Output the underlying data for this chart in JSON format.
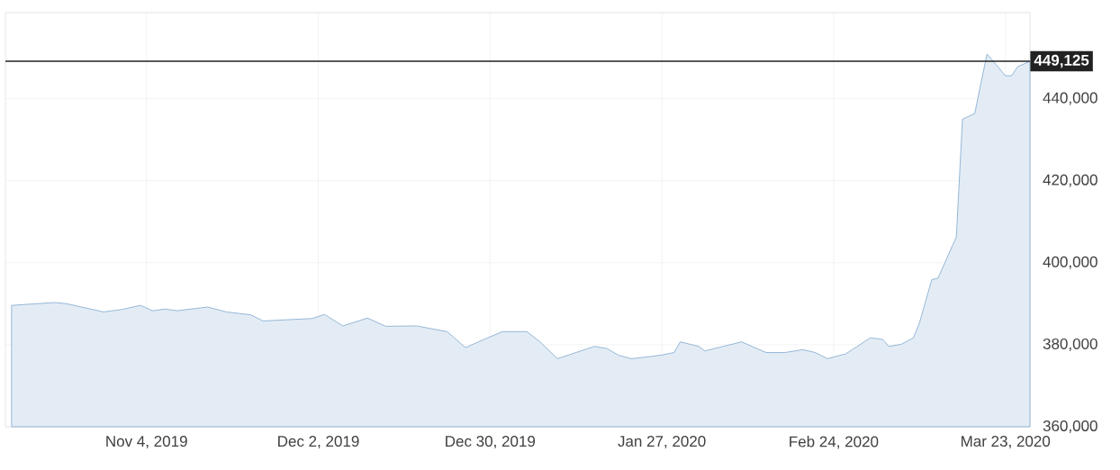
{
  "chart_data": {
    "type": "area",
    "x": [
      "2019-10-13",
      "2019-10-20",
      "2019-10-22",
      "2019-10-28",
      "2019-10-31",
      "2019-11-03",
      "2019-11-05",
      "2019-11-07",
      "2019-11-09",
      "2019-11-14",
      "2019-11-17",
      "2019-11-21",
      "2019-11-23",
      "2019-11-27",
      "2019-12-01",
      "2019-12-03",
      "2019-12-06",
      "2019-12-10",
      "2019-12-13",
      "2019-12-18",
      "2019-12-23",
      "2019-12-26",
      "2019-12-29",
      "2020-01-01",
      "2020-01-05",
      "2020-01-07",
      "2020-01-10",
      "2020-01-13",
      "2020-01-16",
      "2020-01-18",
      "2020-01-20",
      "2020-01-22",
      "2020-01-25",
      "2020-01-27",
      "2020-01-29",
      "2020-01-30",
      "2020-02-02",
      "2020-02-03",
      "2020-02-06",
      "2020-02-09",
      "2020-02-13",
      "2020-02-16",
      "2020-02-19",
      "2020-02-21",
      "2020-02-23",
      "2020-02-26",
      "2020-03-01",
      "2020-03-03",
      "2020-03-04",
      "2020-03-06",
      "2020-03-08",
      "2020-03-09",
      "2020-03-11",
      "2020-03-12",
      "2020-03-15",
      "2020-03-16",
      "2020-03-18",
      "2020-03-19",
      "2020-03-20",
      "2020-03-22",
      "2020-03-23",
      "2020-03-24",
      "2020-03-25",
      "2020-03-27"
    ],
    "series": [
      {
        "color": "#7fa7cf",
        "values": [
          389600,
          390300,
          390000,
          388000,
          388600,
          389600,
          388300,
          388700,
          388300,
          389200,
          388000,
          387300,
          385800,
          386100,
          386400,
          387400,
          384600,
          386500,
          384500,
          384600,
          383200,
          379300,
          381300,
          383200,
          383200,
          380900,
          376600,
          378100,
          379600,
          379100,
          377400,
          376600,
          377100,
          377500,
          378100,
          380700,
          379600,
          378500,
          379600,
          380700,
          378100,
          378100,
          378800,
          378100,
          376600,
          377800,
          381700,
          381300,
          379600,
          380100,
          381700,
          385400,
          395900,
          396200,
          406300,
          435000,
          436400,
          443700,
          450900,
          447400,
          445600,
          445600,
          447800,
          449125
        ]
      }
    ],
    "xlim": [
      "2019-10-12",
      "2020-03-27"
    ],
    "xticks": [
      {
        "value": "2019-11-04",
        "label": "Nov 4, 2019"
      },
      {
        "value": "2019-12-02",
        "label": "Dec 2, 2019"
      },
      {
        "value": "2019-12-30",
        "label": "Dec 30, 2019"
      },
      {
        "value": "2020-01-27",
        "label": "Jan 27, 2020"
      },
      {
        "value": "2020-02-24",
        "label": "Feb 24, 2020"
      },
      {
        "value": "2020-03-23",
        "label": "Mar 23, 2020"
      }
    ],
    "ylim": [
      360000,
      461000
    ],
    "yticks": [
      {
        "value": 360000,
        "label": "360,000"
      },
      {
        "value": 380000,
        "label": "380,000"
      },
      {
        "value": 400000,
        "label": "400,000"
      },
      {
        "value": 420000,
        "label": "420,000"
      },
      {
        "value": 440000,
        "label": "440,000"
      }
    ],
    "grid": true,
    "ref_lines": [
      {
        "axis": "y",
        "value": 449125,
        "label": "449,125",
        "color": "#222222"
      }
    ]
  }
}
